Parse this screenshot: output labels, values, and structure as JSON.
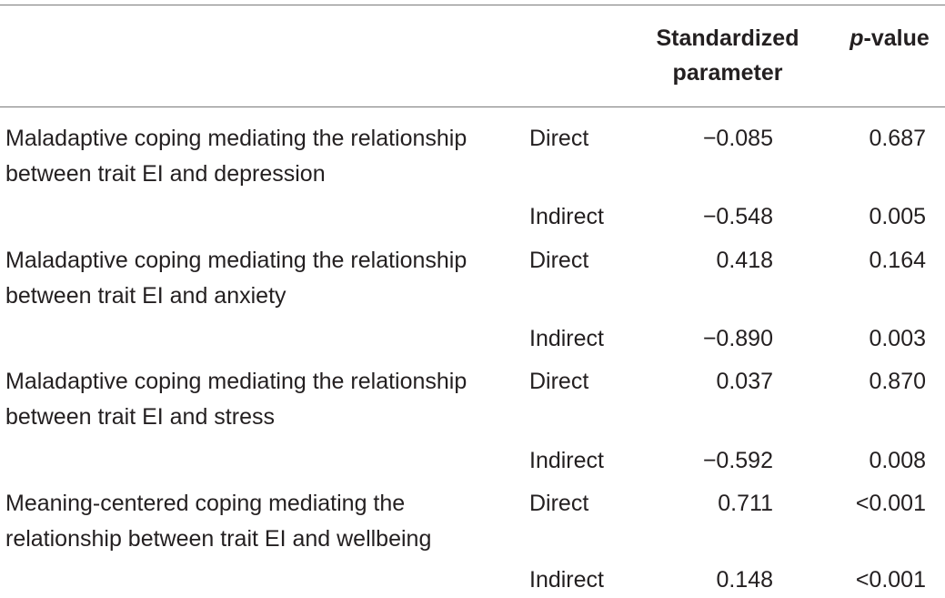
{
  "table": {
    "headers": {
      "standardized_line1": "Standardized",
      "standardized_line2": "parameter",
      "p_italic": "p",
      "p_rest": "-value"
    },
    "rows": [
      {
        "description": "Maladaptive coping mediating the relationship between trait EI and depression",
        "type": "Direct",
        "std": "−0.085",
        "p": "0.687"
      },
      {
        "description": "",
        "type": "Indirect",
        "std": "−0.548",
        "p": "0.005"
      },
      {
        "description": "Maladaptive coping mediating the relationship between trait EI and anxiety",
        "type": "Direct",
        "std": "0.418",
        "p": "0.164"
      },
      {
        "description": "",
        "type": "Indirect",
        "std": "−0.890",
        "p": "0.003"
      },
      {
        "description": "Maladaptive coping mediating the relationship between trait EI and stress",
        "type": "Direct",
        "std": "0.037",
        "p": "0.870"
      },
      {
        "description": "",
        "type": "Indirect",
        "std": "−0.592",
        "p": "0.008"
      },
      {
        "description": "Meaning-centered coping mediating the relationship between trait EI and wellbeing",
        "type": "Direct",
        "std": "0.711",
        "p": "<0.001"
      },
      {
        "description": "",
        "type": "Indirect",
        "std": "0.148",
        "p": "<0.001"
      }
    ]
  }
}
